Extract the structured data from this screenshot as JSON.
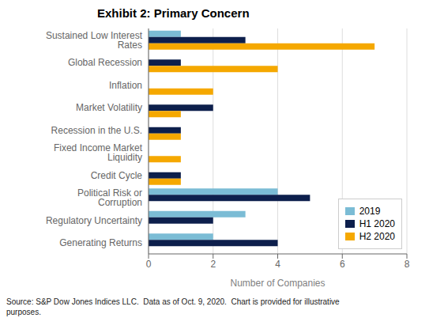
{
  "chart_data": {
    "type": "bar",
    "orientation": "horizontal",
    "title": "Exhibit 2: Primary Concern",
    "categories": [
      "Sustained Low Interest Rates",
      "Global Recession",
      "Inflation",
      "Market Volatility",
      "Recession in the U.S.",
      "Fixed Income Market Liquidity",
      "Credit Cycle",
      "Political Risk or Corruption",
      "Regulatory Uncertainty",
      "Generating Returns"
    ],
    "series": [
      {
        "name": "2019",
        "color": "#7bbcd5",
        "values": [
          1,
          0,
          0,
          0,
          0,
          0,
          0,
          4,
          3,
          2
        ]
      },
      {
        "name": "H1 2020",
        "color": "#0d1f4c",
        "values": [
          3,
          1,
          0,
          2,
          1,
          0,
          1,
          5,
          2,
          4
        ]
      },
      {
        "name": "H2 2020",
        "color": "#f5a800",
        "values": [
          7,
          4,
          2,
          1,
          1,
          1,
          1,
          0,
          0,
          0
        ]
      }
    ],
    "xlabel": "Number of Companies",
    "xlim": [
      0,
      8
    ],
    "xticks": [
      0,
      2,
      4,
      6,
      8
    ],
    "grid": true,
    "legend": "lower right",
    "annotations": [
      "Source: S&P Dow Jones Indices LLC.  Data as of Oct. 9, 2020.  Chart is provided for illustrative\npurposes."
    ]
  }
}
